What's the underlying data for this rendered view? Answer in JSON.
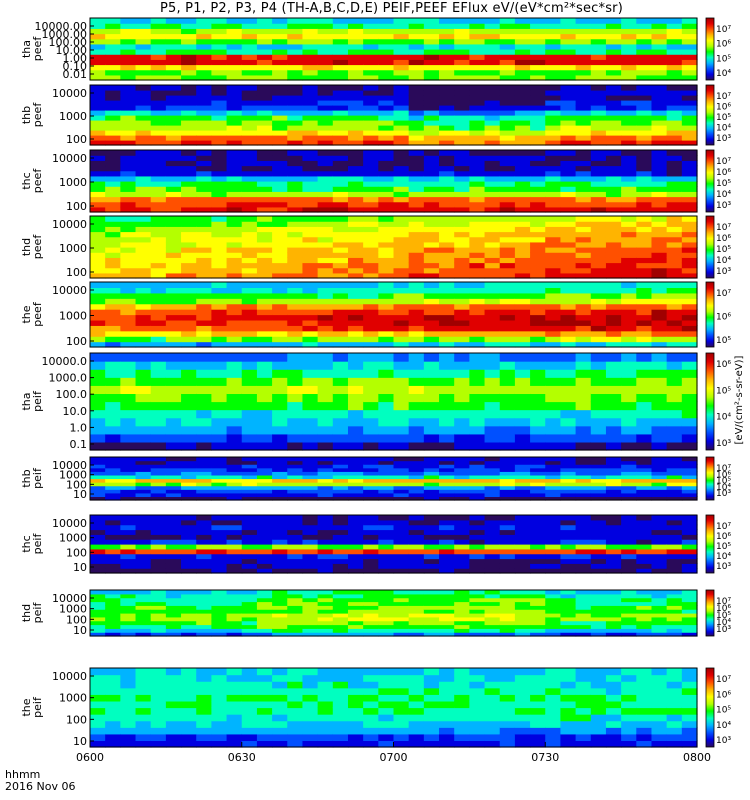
{
  "title": "P5, P1, P2, P3, P4 (TH-A,B,C,D,E) PEIF,PEEF EFlux eV/(eV*cm²*sec*sr)",
  "time_axis": {
    "label_line1": "hhmm",
    "label_line2": "2016 Nov 06",
    "ticks": [
      "0600",
      "0630",
      "0700",
      "0730",
      "0800"
    ]
  },
  "colorbar_unit_label": "[eV/(cm²-s-sr-eV)]",
  "colormap": [
    "#2a0a5a",
    "#0000e0",
    "#0050ff",
    "#00b4ff",
    "#00ffc0",
    "#00ff00",
    "#b4ff00",
    "#ffff00",
    "#ffb400",
    "#ff5000",
    "#e00000",
    "#a00000"
  ],
  "chart_data": {
    "type": "heatmap",
    "x_range": [
      "06:00",
      "08:00"
    ],
    "panels": [
      {
        "name": "tha peef",
        "y_ticks": [
          "10000.00",
          "1000.00",
          "100.00",
          "10.00",
          "1.00",
          "0.10",
          "0.01"
        ],
        "colorbar_ticks": [
          "10⁷",
          "10⁶",
          "10⁵",
          "10⁴"
        ]
      },
      {
        "name": "thb peef",
        "y_ticks": [
          "10000",
          "1000",
          "100"
        ],
        "colorbar_ticks": [
          "10⁷",
          "10⁶",
          "10⁵",
          "10⁴",
          "10³"
        ]
      },
      {
        "name": "thc peef",
        "y_ticks": [
          "10000",
          "1000",
          "100"
        ],
        "colorbar_ticks": [
          "10⁷",
          "10⁶",
          "10⁵",
          "10⁴",
          "10³"
        ]
      },
      {
        "name": "thd peef",
        "y_ticks": [
          "10000",
          "1000",
          "100"
        ],
        "colorbar_ticks": [
          "10⁷",
          "10⁶",
          "10⁵",
          "10⁴",
          "10³"
        ]
      },
      {
        "name": "the peef",
        "y_ticks": [
          "10000",
          "1000",
          "100"
        ],
        "colorbar_ticks": [
          "10⁷",
          "10⁶",
          "10⁵"
        ]
      },
      {
        "name": "tha peif",
        "y_ticks": [
          "10000.0",
          "1000.0",
          "100.0",
          "10.0",
          "1.0",
          "0.1"
        ],
        "colorbar_ticks": [
          "10⁶",
          "10⁵",
          "10⁴",
          "10³"
        ]
      },
      {
        "name": "thb peif",
        "y_ticks": [
          "10000",
          "1000",
          "100",
          "10"
        ],
        "colorbar_ticks": [
          "10⁷",
          "10⁶",
          "10⁵",
          "10⁴",
          "10³"
        ]
      },
      {
        "name": "thc peif",
        "y_ticks": [
          "10000",
          "1000",
          "100",
          "10"
        ],
        "colorbar_ticks": [
          "10⁷",
          "10⁶",
          "10⁵",
          "10⁴",
          "10³"
        ]
      },
      {
        "name": "thd peif",
        "y_ticks": [
          "10000",
          "1000",
          "100",
          "10"
        ],
        "colorbar_ticks": [
          "10⁷",
          "10⁶",
          "10⁵",
          "10⁴",
          "10³"
        ]
      },
      {
        "name": "the peif",
        "y_ticks": [
          "10000",
          "1000",
          "100",
          "10"
        ],
        "colorbar_ticks": [
          "10⁷",
          "10⁶",
          "10⁵",
          "10⁴",
          "10³"
        ]
      }
    ]
  }
}
